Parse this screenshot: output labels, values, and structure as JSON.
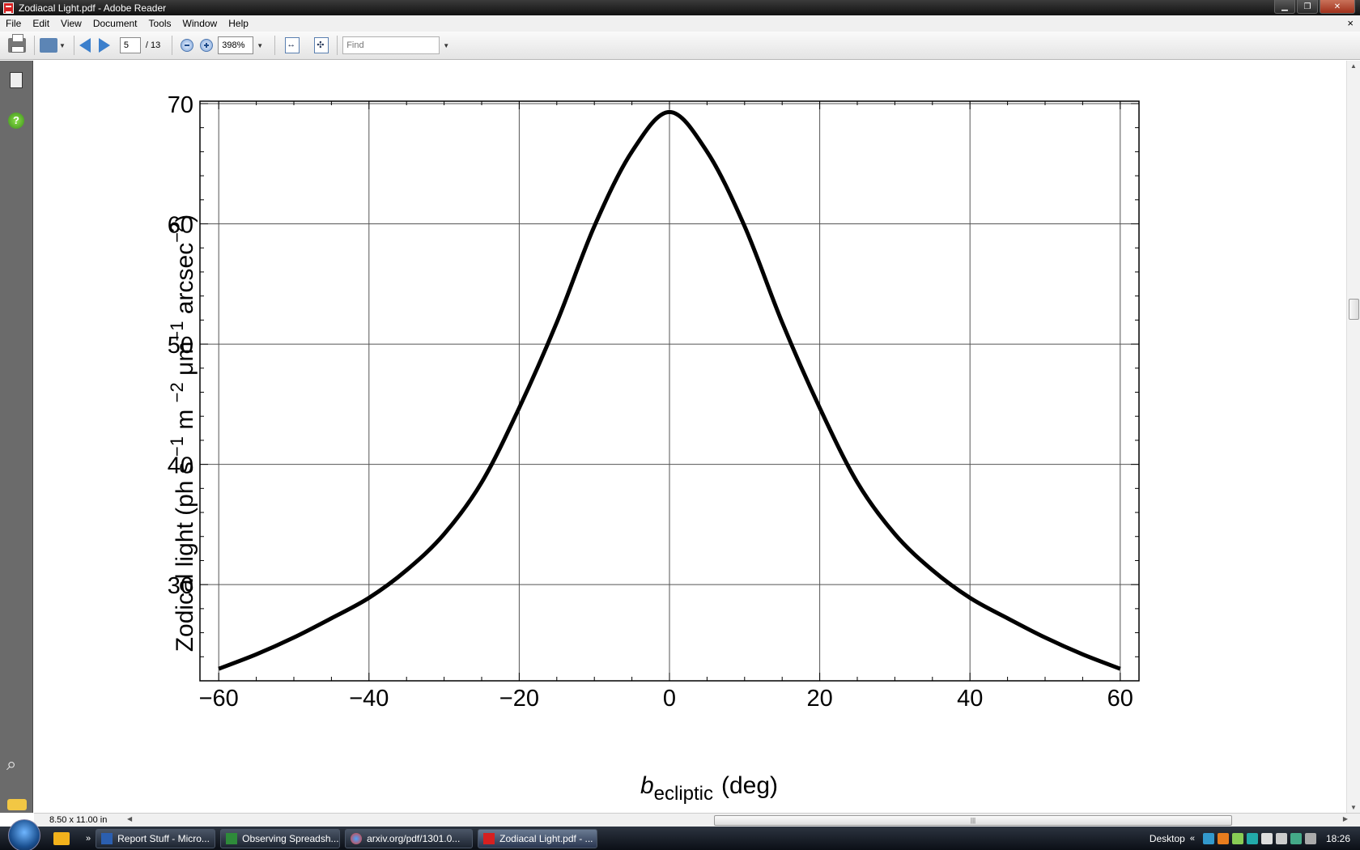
{
  "window": {
    "title": "Zodiacal Light.pdf - Adobe Reader",
    "controls": {
      "minimize": "▁",
      "restore": "❐",
      "close": "✕"
    }
  },
  "menu": {
    "items": [
      "File",
      "Edit",
      "View",
      "Document",
      "Tools",
      "Window",
      "Help"
    ],
    "doc_close": "×"
  },
  "toolbar": {
    "page_current": "5",
    "page_total": "/ 13",
    "zoom": "398%",
    "find_placeholder": "Find"
  },
  "status": {
    "page_size": "8.50 x 11.00 in"
  },
  "taskbar": {
    "tasks": [
      "Report Stuff - Micro...",
      "Observing Spreadsh...",
      "arxiv.org/pdf/1301.0...",
      "Zodiacal Light.pdf - ..."
    ],
    "desktop_label": "Desktop",
    "clock": "18:26"
  },
  "colors": {
    "accent": "#3b7fcc",
    "nav_pane": "#6b6b6b",
    "taskbar": "#1d2430"
  },
  "chart_data": {
    "type": "line",
    "title": "",
    "xlabel_italic": "b",
    "xlabel_sub": "ecliptic",
    "xlabel_rest": "(deg)",
    "ylabel_text": "Zodical light (ph s",
    "ylabel_parts": [
      {
        "text": "Zodical light (ph s",
        "sup": false
      },
      {
        "text": " −1",
        "sup": true
      },
      {
        "text": "  m ",
        "sup": false
      },
      {
        "text": "−2",
        "sup": true
      },
      {
        "text": " μm",
        "sup": false
      },
      {
        "text": "−1",
        "sup": true
      },
      {
        "text": " arcsec",
        "sup": false
      },
      {
        "text": "−2",
        "sup": true
      },
      {
        "text": ")",
        "sup": false
      }
    ],
    "xlim": [
      -62.5,
      62.5
    ],
    "ylim": [
      22,
      70.2
    ],
    "xticks": [
      -60,
      -40,
      -20,
      0,
      20,
      40,
      60
    ],
    "xtick_labels": [
      "−60",
      "−40",
      "−20",
      "0",
      "20",
      "40",
      "60"
    ],
    "yticks": [
      30,
      40,
      50,
      60,
      70
    ],
    "ytick_labels": [
      "30",
      "40",
      "50",
      "60",
      "70"
    ],
    "grid": true,
    "series": [
      {
        "x": [
          -60,
          -55,
          -50,
          -45,
          -40,
          -35,
          -30,
          -25,
          -20,
          -15,
          -10,
          -5,
          0,
          5,
          10,
          15,
          20,
          25,
          30,
          35,
          40,
          45,
          50,
          55,
          60
        ],
        "y": [
          23.0,
          24.2,
          25.6,
          27.2,
          28.9,
          31.2,
          34.2,
          38.5,
          44.7,
          51.8,
          59.8,
          66.0,
          69.3,
          66.0,
          59.8,
          51.8,
          44.7,
          38.5,
          34.2,
          31.2,
          28.9,
          27.2,
          25.6,
          24.2,
          23.0
        ]
      }
    ]
  }
}
